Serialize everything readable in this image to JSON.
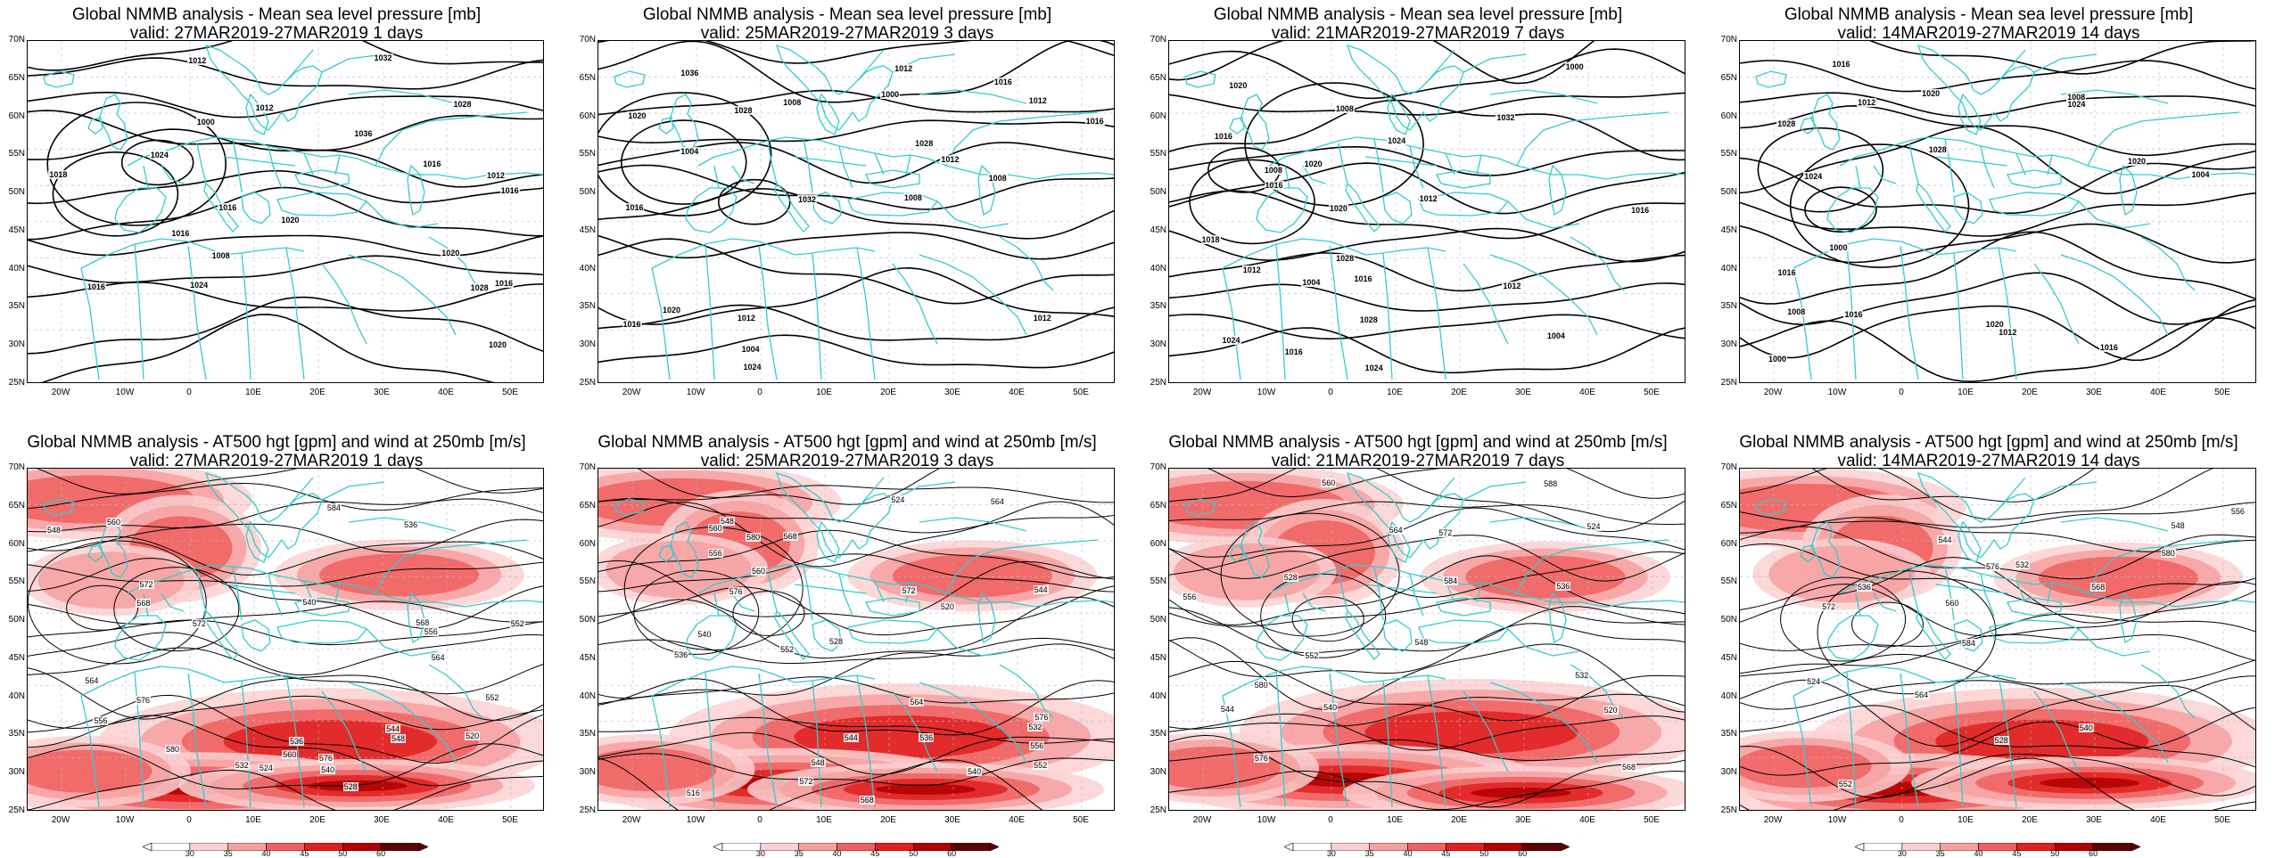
{
  "panels_top": [
    {
      "title": "Global NMMB analysis - Mean sea level pressure [mb]",
      "valid": "valid: 27MAR2019-27MAR2019   1 days",
      "labels": [
        "1000",
        "1012",
        "1036",
        "1016",
        "1016",
        "1016",
        "1008",
        "1032",
        "1028",
        "1028",
        "1024",
        "1020",
        "1016",
        "1024",
        "1016",
        "1020",
        "1016",
        "1018",
        "1012",
        "1012",
        "1020"
      ]
    },
    {
      "title": "Global NMMB analysis - Mean sea level pressure [mb]",
      "valid": "valid: 25MAR2019-27MAR2019   3 days",
      "labels": [
        "1000",
        "1012",
        "1016",
        "1008",
        "1004",
        "1020",
        "1036",
        "1032",
        "1028",
        "1028",
        "1024",
        "1020",
        "1016",
        "1012",
        "1016",
        "1008",
        "1012",
        "1016",
        "1012",
        "1012",
        "1004",
        "1008"
      ]
    },
    {
      "title": "Global NMMB analysis - Mean sea level pressure [mb]",
      "valid": "valid: 21MAR2019-27MAR2019   7 days",
      "labels": [
        "1000",
        "1004",
        "1008",
        "1004",
        "1008",
        "1012",
        "1016",
        "1024",
        "1028",
        "1032",
        "1028",
        "1024",
        "1020",
        "1016",
        "1012",
        "1016",
        "1020",
        "1018",
        "1024",
        "1020",
        "1016",
        "1012",
        "1016"
      ]
    },
    {
      "title": "Global NMMB analysis - Mean sea level pressure [mb]",
      "valid": "valid: 14MAR2019-27MAR2019   14 days",
      "labels": [
        "1000",
        "1004",
        "1008",
        "1000",
        "1008",
        "1012",
        "1016",
        "1020",
        "1024",
        "1028",
        "1028",
        "1024",
        "1020",
        "1016",
        "1016",
        "1020",
        "1012",
        "1016"
      ]
    }
  ],
  "panels_bottom": [
    {
      "title": "Global NMMB analysis - AT500 hgt [gpm] and wind at 250mb [m/s]",
      "valid": "valid: 27MAR2019-27MAR2019   1 days",
      "labels": [
        "532",
        "536",
        "540",
        "548",
        "552",
        "556",
        "560",
        "564",
        "568",
        "572",
        "576",
        "520",
        "524",
        "528",
        "536",
        "540",
        "544",
        "548",
        "552",
        "556",
        "560",
        "564",
        "568",
        "572",
        "576",
        "580",
        "584"
      ]
    },
    {
      "title": "Global NMMB analysis - AT500 hgt [gpm] and wind at 250mb [m/s]",
      "valid": "valid: 25MAR2019-27MAR2019   3 days",
      "labels": [
        "536",
        "540",
        "544",
        "548",
        "552",
        "556",
        "560",
        "564",
        "568",
        "572",
        "576",
        "516",
        "520",
        "524",
        "528",
        "532",
        "536",
        "540",
        "544",
        "548",
        "552",
        "556",
        "560",
        "564",
        "568",
        "572",
        "576",
        "580"
      ]
    },
    {
      "title": "Global NMMB analysis - AT500 hgt [gpm] and wind at 250mb [m/s]",
      "valid": "valid: 21MAR2019-27MAR2019   7 days",
      "labels": [
        "520",
        "524",
        "528",
        "532",
        "536",
        "540",
        "544",
        "548",
        "552",
        "556",
        "560",
        "564",
        "568",
        "572",
        "576",
        "580",
        "584",
        "588"
      ]
    },
    {
      "title": "Global NMMB analysis - AT500 hgt [gpm] and wind at 250mb [m/s]",
      "valid": "valid: 14MAR2019-27MAR2019   14 days",
      "labels": [
        "524",
        "528",
        "532",
        "536",
        "540",
        "544",
        "548",
        "552",
        "556",
        "560",
        "564",
        "568",
        "572",
        "576",
        "580",
        "584"
      ]
    }
  ],
  "lat_labels": [
    "70N",
    "65N",
    "60N",
    "55N",
    "50N",
    "45N",
    "40N",
    "35N",
    "30N",
    "25N"
  ],
  "lon_labels": [
    "20W",
    "10W",
    "0",
    "10E",
    "20E",
    "30E",
    "40E",
    "50E"
  ],
  "colorbar": {
    "ticks": [
      "30",
      "35",
      "40",
      "45",
      "50",
      "60"
    ],
    "colors": [
      "#ffffff",
      "#fbd1d1",
      "#f7a0a0",
      "#f06060",
      "#e02020",
      "#b00000",
      "#600000"
    ]
  },
  "colors": {
    "coast": "#33cccc",
    "contour": "#000000",
    "background": "#ffffff"
  }
}
